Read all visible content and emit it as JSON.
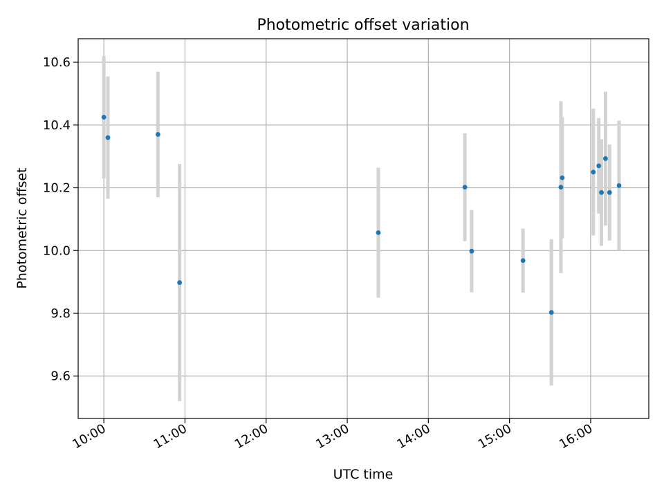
{
  "chart_data": {
    "type": "scatter",
    "title": "Photometric offset variation",
    "xlabel": "UTC time",
    "ylabel": "Photometric offset",
    "x_tick_labels": [
      "10:00",
      "11:00",
      "12:00",
      "13:00",
      "14:00",
      "15:00",
      "16:00"
    ],
    "y_tick_labels": [
      "9.6",
      "9.8",
      "10.0",
      "10.2",
      "10.4",
      "10.6"
    ],
    "xlim": [
      "09:41",
      "16:43"
    ],
    "ylim": [
      9.465,
      10.675
    ],
    "grid": true,
    "colors": {
      "points": "#1f77b4",
      "errorbars": "#d3d3d3",
      "grid": "#b0b0b0"
    },
    "points": [
      {
        "x": "10:00",
        "y": 10.425,
        "err": 0.195
      },
      {
        "x": "10:03",
        "y": 10.36,
        "err": 0.195
      },
      {
        "x": "10:40",
        "y": 10.37,
        "err": 0.2
      },
      {
        "x": "10:56",
        "y": 9.898,
        "err": 0.378
      },
      {
        "x": "13:23",
        "y": 10.057,
        "err": 0.207
      },
      {
        "x": "14:27",
        "y": 10.202,
        "err": 0.172
      },
      {
        "x": "14:32",
        "y": 9.998,
        "err": 0.131
      },
      {
        "x": "15:10",
        "y": 9.968,
        "err": 0.102
      },
      {
        "x": "15:31",
        "y": 9.803,
        "err": 0.233
      },
      {
        "x": "15:38",
        "y": 10.202,
        "err": 0.274
      },
      {
        "x": "15:39",
        "y": 10.232,
        "err": 0.193
      },
      {
        "x": "16:02",
        "y": 10.25,
        "err": 0.202
      },
      {
        "x": "16:06",
        "y": 10.27,
        "err": 0.152
      },
      {
        "x": "16:08",
        "y": 10.185,
        "err": 0.17
      },
      {
        "x": "16:11",
        "y": 10.293,
        "err": 0.213
      },
      {
        "x": "16:14",
        "y": 10.185,
        "err": 0.153
      },
      {
        "x": "16:21",
        "y": 10.207,
        "err": 0.207
      }
    ]
  }
}
